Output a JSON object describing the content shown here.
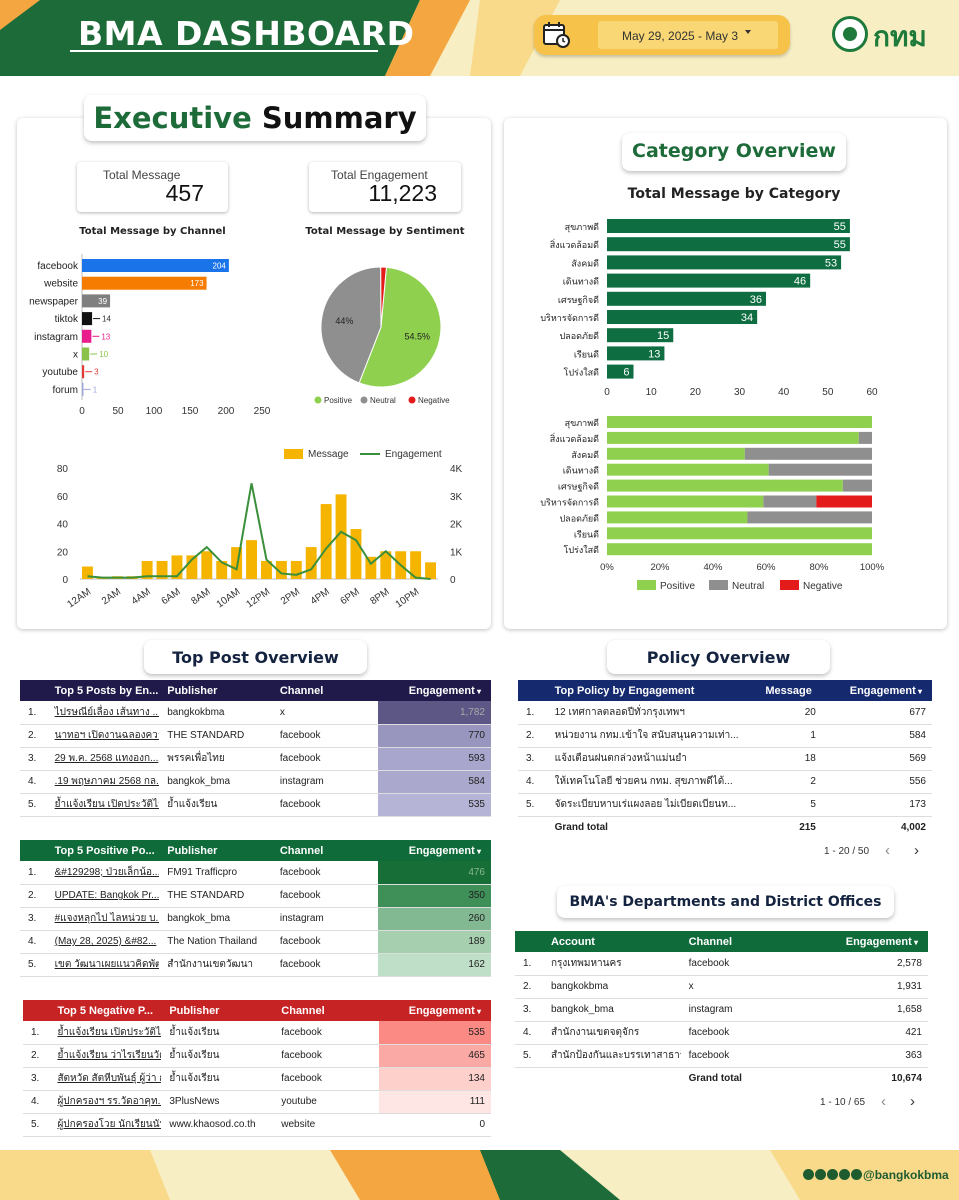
{
  "header": {
    "title": "BMA DASHBOARD",
    "date_range": "May 29, 2025 - May 3",
    "logo_text": "กทม"
  },
  "exec": {
    "title_part1": "Executive",
    "title_part2": "Summary",
    "kpi_total_message_label": "Total Message",
    "kpi_total_message_value": "457",
    "kpi_total_engagement_label": "Total Engagement",
    "kpi_total_engagement_value": "11,223",
    "channel_chart_title": "Total Message by Channel",
    "sentiment_chart_title": "Total Message by Sentiment"
  },
  "category": {
    "title": "Category Overview",
    "chart_title": "Total Message by Category"
  },
  "top_post": {
    "title": "Top Post Overview"
  },
  "policy": {
    "title": "Policy Overview"
  },
  "departments": {
    "title": "BMA's Departments and District Offices"
  },
  "colors": {
    "dark_green": "#1e6b3a",
    "category_green": "#0e6e42",
    "orange": "#f28a20",
    "positive": "#8fd14f",
    "neutral": "#8f8f8f",
    "negative": "#e41b1b",
    "message_bar": "#f5b400",
    "engagement_line": "#3a8f3a"
  },
  "chart_data": [
    {
      "type": "bar",
      "orientation": "horizontal",
      "title": "Total Message by Channel",
      "categories": [
        "facebook",
        "website",
        "newspaper",
        "tiktok",
        "instagram",
        "x",
        "youtube",
        "forum"
      ],
      "values": [
        204,
        173,
        39,
        14,
        13,
        10,
        3,
        1
      ],
      "colors": [
        "#1a73e8",
        "#f57c00",
        "#7f7f7f",
        "#111111",
        "#e91e8c",
        "#8bc34a",
        "#e53935",
        "#9fa8da"
      ],
      "xticks": [
        "0",
        "50",
        "100",
        "150",
        "200",
        "250"
      ],
      "xlim": [
        0,
        250
      ]
    },
    {
      "type": "pie",
      "title": "Total Message by Sentiment",
      "labels": [
        "Positive",
        "Neutral",
        "Negative"
      ],
      "values": [
        54.5,
        44,
        1.5
      ],
      "value_labels": [
        "54.5%",
        "44%",
        ""
      ],
      "colors": [
        "#8fd14f",
        "#8f8f8f",
        "#e41b1b"
      ],
      "legend": "bottom"
    },
    {
      "type": "bar+line",
      "legend": "top",
      "series": [
        {
          "name": "Message",
          "type": "bar",
          "axis": "left",
          "values": [
            9,
            1,
            2,
            2,
            13,
            13,
            17,
            17,
            20,
            13,
            23,
            28,
            13,
            13,
            13,
            23,
            54,
            61,
            36,
            16,
            20,
            20,
            20,
            12
          ]
        },
        {
          "name": "Engagement",
          "type": "line",
          "axis": "right",
          "values": [
            100,
            50,
            50,
            50,
            100,
            100,
            100,
            700,
            1150,
            600,
            350,
            3450,
            700,
            200,
            150,
            350,
            1100,
            1700,
            1400,
            550,
            1000,
            500,
            50,
            0
          ]
        }
      ],
      "xticks": [
        "12AM",
        "2AM",
        "4AM",
        "6AM",
        "8AM",
        "10AM",
        "12PM",
        "2PM",
        "4PM",
        "6PM",
        "8PM",
        "10PM"
      ],
      "yticks_left": [
        "0",
        "20",
        "40",
        "60",
        "80"
      ],
      "ylim_left": [
        0,
        80
      ],
      "yticks_right": [
        "0",
        "1K",
        "2K",
        "3K",
        "4K"
      ],
      "ylim_right": [
        0,
        4000
      ]
    },
    {
      "type": "bar",
      "orientation": "horizontal",
      "title": "Total Message by Category",
      "categories": [
        "สุขภาพดี",
        "สิ่งแวดล้อมดี",
        "สังคมดี",
        "เดินทางดี",
        "เศรษฐกิจดี",
        "บริหารจัดการดี",
        "ปลอดภัยดี",
        "เรียนดี",
        "โปร่งใสดี"
      ],
      "values": [
        55,
        55,
        53,
        46,
        36,
        34,
        15,
        13,
        6
      ],
      "xticks": [
        "0",
        "10",
        "20",
        "30",
        "40",
        "50",
        "60"
      ],
      "xlim": [
        0,
        60
      ],
      "color": "#0e6e42"
    },
    {
      "type": "bar",
      "orientation": "horizontal",
      "stacked": "percent",
      "categories": [
        "สุขภาพดี",
        "สิ่งแวดล้อมดี",
        "สังคมดี",
        "เดินทางดี",
        "เศรษฐกิจดี",
        "บริหารจัดการดี",
        "ปลอดภัยดี",
        "เรียนดี",
        "โปร่งใสดี"
      ],
      "series": [
        {
          "name": "Positive",
          "values": [
            100,
            95,
            52,
            61,
            89,
            59,
            53,
            100,
            100
          ]
        },
        {
          "name": "Neutral",
          "values": [
            0,
            5,
            48,
            39,
            11,
            20,
            47,
            0,
            0
          ]
        },
        {
          "name": "Negative",
          "values": [
            0,
            0,
            0,
            0,
            0,
            21,
            0,
            0,
            0
          ]
        }
      ],
      "xticks": [
        "0%",
        "20%",
        "40%",
        "60%",
        "80%",
        "100%"
      ],
      "legend": "bottom"
    }
  ],
  "tables": {
    "top5": {
      "headers": [
        "Top 5 Posts by En...",
        "Publisher",
        "Channel",
        "Engagement"
      ],
      "rows": [
        [
          "1.",
          "ไปรษณีย์เลื่อง เส้นทาง ...",
          "bangkokbma",
          "x",
          "1,782"
        ],
        [
          "2.",
          "นาทอฯ เปิดงานฉลองความ...",
          "THE STANDARD",
          "facebook",
          "770"
        ],
        [
          "3.",
          "29 พ.ค. 2568 แทงองก...",
          "พรรคเพื่อไทย",
          "facebook",
          "593"
        ],
        [
          "4.",
          ".19 พฤษภาคม 2568 กล...",
          "bangkok_bma",
          "instagram",
          "584"
        ],
        [
          "5.",
          "ย้ำแจ้งเรียน เปิดประวัติไรเร้...",
          "ย้ำแจ้งเรียน",
          "facebook",
          "535"
        ]
      ]
    },
    "positive": {
      "headers": [
        "Top 5 Positive Po...",
        "Publisher",
        "Channel",
        "Engagement"
      ],
      "rows": [
        [
          "1.",
          "&#129298; ป่วยเล็กน้อ...",
          "FM91 Trafficpro",
          "facebook",
          "476"
        ],
        [
          "2.",
          "UPDATE: Bangkok Pr...",
          "THE STANDARD",
          "facebook",
          "350"
        ],
        [
          "3.",
          "#แจงหลุกไป ไลหน่วย บ...",
          "bangkok_bma",
          "instagram",
          "260"
        ],
        [
          "4.",
          "(May 28, 2025) &#82...",
          "The Nation Thailand",
          "facebook",
          "189"
        ],
        [
          "5.",
          "เขต วัฒนาเผยแนวคิดพัฒน...",
          "สำนักงานเขตวัฒนา",
          "facebook",
          "162"
        ]
      ]
    },
    "negative": {
      "headers": [
        "Top 5 Negative P...",
        "Publisher",
        "Channel",
        "Engagement"
      ],
      "rows": [
        [
          "1.",
          "ย้ำแจ้งเรียน เปิดประวัติไรเร้...",
          "ย้ำแจ้งเรียน",
          "facebook",
          "535"
        ],
        [
          "2.",
          "ย้ำแจ้งเรียน ว่าไรเรียนวัดลา...",
          "ย้ำแจ้งเรียน",
          "facebook",
          "465"
        ],
        [
          "3.",
          "สัตหวัด สัตหีบพันธุ์ ผู้ว่า กรุง...",
          "ย้ำแจ้งเรียน",
          "facebook",
          "134"
        ],
        [
          "4.",
          "ผู้ปกครองฯ รร.วัดอาคุท...",
          "3PlusNews",
          "youtube",
          "111"
        ],
        [
          "5.",
          "ผู้ปกครองโวย นักเรียนนับ...",
          "www.khaosod.co.th",
          "website",
          "0"
        ]
      ]
    },
    "policy": {
      "headers": [
        "Top Policy by Engagement",
        "Message",
        "Engagement"
      ],
      "rows": [
        [
          "1.",
          "12 เทศกาลตลอดปีทั่วกรุงเทพฯ",
          "20",
          "677"
        ],
        [
          "2.",
          "หน่วยงาน กทม.เข้าใจ สนับสนุนความเท่า...",
          "1",
          "584"
        ],
        [
          "3.",
          "แจ้งเตือนฝนตกล่วงหน้าแม่นยำ",
          "18",
          "569"
        ],
        [
          "4.",
          "ให้เทคโนโลยี ช่วยคน กทม. สุขภาพดีได้...",
          "2",
          "556"
        ],
        [
          "5.",
          "จัดระเบียบหาบเร่แผงลอย ไม่เบียดเบียนท...",
          "5",
          "173"
        ]
      ],
      "total_label": "Grand total",
      "total_message": "215",
      "total_engagement": "4,002",
      "pager": "1 - 20 / 50"
    },
    "departments": {
      "headers": [
        "Account",
        "Channel",
        "Engagement"
      ],
      "rows": [
        [
          "1.",
          "กรุงเทพมหานคร",
          "facebook",
          "2,578"
        ],
        [
          "2.",
          "bangkokbma",
          "x",
          "1,931"
        ],
        [
          "3.",
          "bangkok_bma",
          "instagram",
          "1,658"
        ],
        [
          "4.",
          "สำนักงานเขตจตุจักร",
          "facebook",
          "421"
        ],
        [
          "5.",
          "สำนักป้องกันและบรรเทาสาธาร...",
          "facebook",
          "363"
        ]
      ],
      "total_label": "Grand total",
      "total_engagement": "10,674",
      "pager": "1 - 10 / 65"
    }
  },
  "footer": {
    "handle": "@bangkokbma"
  }
}
